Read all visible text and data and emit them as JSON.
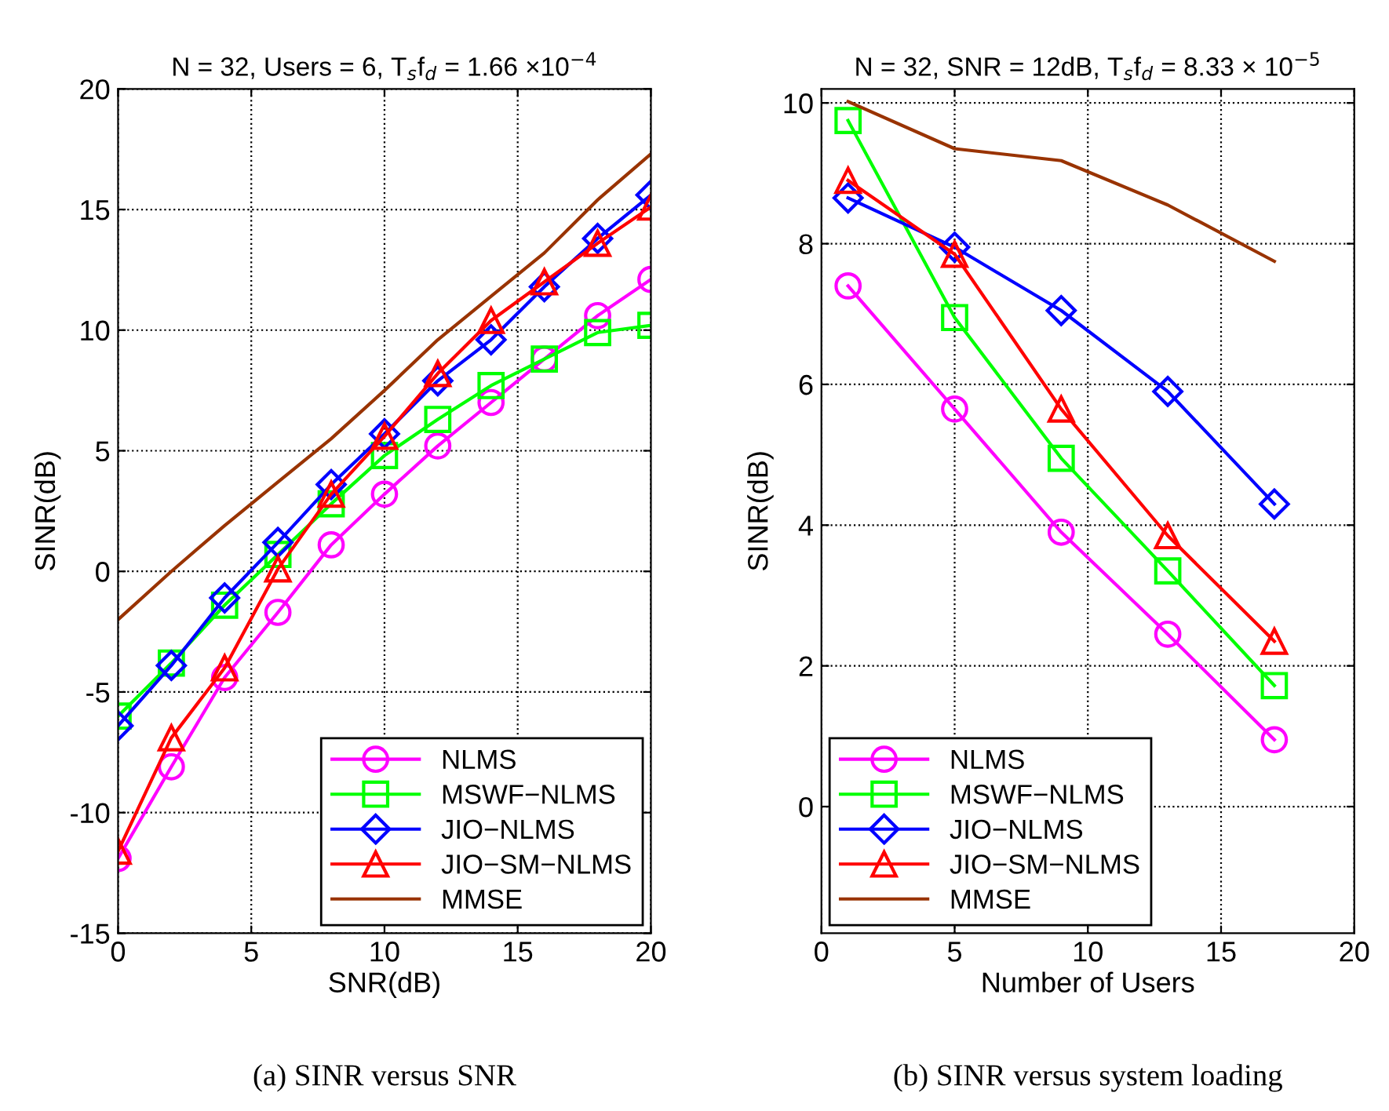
{
  "chart_data": [
    {
      "type": "line",
      "title": "N = 32, Users = 6, T$_{s}$f$_{d}$ = 1.66 ×10$^{−4}$",
      "xlabel": "SNR(dB)",
      "ylabel": "SINR(dB)",
      "x": [
        0,
        2,
        4,
        6,
        8,
        10,
        12,
        14,
        16,
        18,
        20
      ],
      "series": [
        {
          "name": "NLMS",
          "color": "#ff00ff",
          "marker": "circle",
          "values": [
            -11.9,
            -8.1,
            -4.4,
            -1.7,
            1.1,
            3.2,
            5.2,
            7.0,
            8.8,
            10.6,
            12.1
          ]
        },
        {
          "name": "MSWF−NLMS",
          "color": "#00ff00",
          "marker": "square",
          "values": [
            -6.0,
            -3.8,
            -1.4,
            0.7,
            2.8,
            4.8,
            6.3,
            7.7,
            8.8,
            9.9,
            10.2
          ]
        },
        {
          "name": "JIO−NLMS",
          "color": "#0000ff",
          "marker": "diamond",
          "values": [
            -6.4,
            -3.9,
            -1.1,
            1.2,
            3.6,
            5.7,
            7.9,
            9.6,
            11.8,
            13.8,
            15.6
          ]
        },
        {
          "name": "JIO−SM−NLMS",
          "color": "#ff0000",
          "marker": "triangle",
          "values": [
            -11.6,
            -6.9,
            -4.0,
            0.1,
            3.2,
            5.6,
            8.2,
            10.4,
            12.0,
            13.6,
            15.1
          ]
        },
        {
          "name": "MMSE",
          "color": "#993300",
          "marker": "none",
          "values": [
            -2.0,
            0.0,
            1.9,
            3.7,
            5.5,
            7.5,
            9.6,
            11.4,
            13.2,
            15.4,
            17.3
          ]
        }
      ],
      "xlim": [
        0,
        20
      ],
      "xticks": [
        0,
        5,
        10,
        15,
        20
      ],
      "ylim": [
        -15,
        20
      ],
      "yticks": [
        -15,
        -10,
        -5,
        0,
        5,
        10,
        15,
        20
      ],
      "grid": true,
      "legend": "bottom right",
      "line_style": "solid",
      "annotations": [
        "(a) SINR versus SNR"
      ]
    },
    {
      "type": "line",
      "title": "N = 32, SNR = 12dB, T$_{s}$f$_{d}$ = 8.33 × 10$^{−5}$",
      "xlabel": "Number of Users",
      "ylabel": "SINR(dB)",
      "x": [
        1,
        5,
        9,
        13,
        17
      ],
      "series": [
        {
          "name": "NLMS",
          "color": "#ff00ff",
          "marker": "circle",
          "values": [
            7.4,
            5.65,
            3.9,
            2.45,
            0.95
          ]
        },
        {
          "name": "MSWF−NLMS",
          "color": "#00ff00",
          "marker": "square",
          "values": [
            9.75,
            6.95,
            4.95,
            3.35,
            1.72
          ]
        },
        {
          "name": "JIO−NLMS",
          "color": "#0000ff",
          "marker": "diamond",
          "values": [
            8.65,
            7.95,
            7.05,
            5.9,
            4.3
          ]
        },
        {
          "name": "JIO−SM−NLMS",
          "color": "#ff0000",
          "marker": "triangle",
          "values": [
            8.9,
            7.85,
            5.65,
            3.85,
            2.35
          ]
        },
        {
          "name": "MMSE",
          "color": "#993300",
          "marker": "none",
          "values": [
            10.02,
            9.35,
            9.18,
            8.55,
            7.75
          ]
        }
      ],
      "xlim": [
        0,
        20
      ],
      "xticks": [
        0,
        5,
        10,
        15,
        20
      ],
      "ylim": [
        -1.8,
        10.2
      ],
      "yticks": [
        0,
        2,
        4,
        6,
        8,
        10
      ],
      "grid": true,
      "legend": "bottom left",
      "line_style": "solid",
      "annotations": [
        "(b) SINR versus system loading"
      ]
    }
  ]
}
